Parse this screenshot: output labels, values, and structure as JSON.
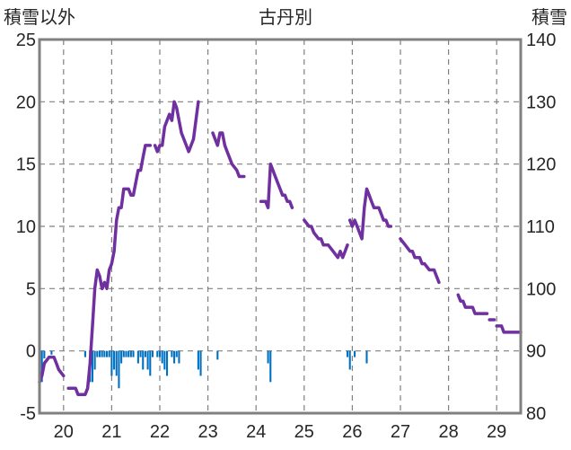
{
  "chart_data": {
    "type": "line",
    "title": "古丹別",
    "left_axis_label": "積雪以外",
    "right_axis_label": "積雪",
    "left_ylim": [
      -5,
      25
    ],
    "left_ticks": [
      "25",
      "20",
      "15",
      "10",
      "5",
      "0",
      "-5"
    ],
    "right_ylim": [
      80,
      140
    ],
    "right_ticks": [
      "140",
      "130",
      "120",
      "110",
      "100",
      "90",
      "80"
    ],
    "x_ticks": [
      "20",
      "21",
      "22",
      "23",
      "24",
      "25",
      "26",
      "27",
      "28",
      "29"
    ],
    "xlim": [
      19.5,
      29.5
    ],
    "grid": true,
    "snow_depth_line": {
      "color": "#7030a0",
      "axis": "right",
      "segments": [
        [
          [
            19.5,
            85
          ],
          [
            19.55,
            86
          ],
          [
            19.6,
            88
          ],
          [
            19.7,
            89
          ],
          [
            19.8,
            89
          ],
          [
            19.85,
            88
          ],
          [
            19.9,
            87
          ],
          [
            20.0,
            86
          ]
        ],
        [
          [
            20.1,
            84
          ],
          [
            20.25,
            84
          ],
          [
            20.3,
            83
          ],
          [
            20.45,
            83
          ],
          [
            20.5,
            84
          ],
          [
            20.55,
            88
          ],
          [
            20.6,
            94
          ],
          [
            20.65,
            100
          ],
          [
            20.7,
            103
          ],
          [
            20.75,
            102
          ],
          [
            20.8,
            100
          ],
          [
            20.85,
            101
          ],
          [
            20.9,
            100
          ],
          [
            20.95,
            103
          ],
          [
            21.0,
            104
          ],
          [
            21.05,
            106
          ],
          [
            21.1,
            111
          ],
          [
            21.15,
            113
          ],
          [
            21.2,
            113
          ],
          [
            21.25,
            116
          ],
          [
            21.35,
            116
          ],
          [
            21.4,
            115
          ],
          [
            21.45,
            115
          ],
          [
            21.55,
            119
          ],
          [
            21.6,
            119
          ],
          [
            21.65,
            121
          ],
          [
            21.7,
            123
          ],
          [
            21.8,
            123
          ]
        ],
        [
          [
            21.9,
            123
          ],
          [
            21.95,
            122
          ],
          [
            22.0,
            123
          ],
          [
            22.05,
            123
          ],
          [
            22.1,
            126
          ],
          [
            22.2,
            128
          ],
          [
            22.25,
            127
          ],
          [
            22.3,
            130
          ],
          [
            22.35,
            129
          ],
          [
            22.4,
            127
          ],
          [
            22.45,
            125
          ],
          [
            22.5,
            124
          ],
          [
            22.55,
            123
          ],
          [
            22.6,
            122
          ],
          [
            22.7,
            124
          ],
          [
            22.75,
            127
          ],
          [
            22.8,
            130
          ]
        ],
        [
          [
            23.1,
            125
          ],
          [
            23.15,
            124
          ],
          [
            23.2,
            123
          ],
          [
            23.25,
            125
          ],
          [
            23.3,
            125
          ],
          [
            23.35,
            123
          ],
          [
            23.4,
            122
          ],
          [
            23.45,
            121
          ],
          [
            23.5,
            120
          ],
          [
            23.6,
            119
          ],
          [
            23.65,
            118
          ],
          [
            23.75,
            118
          ]
        ],
        [
          [
            24.1,
            114
          ],
          [
            24.2,
            114
          ],
          [
            24.25,
            113
          ],
          [
            24.3,
            120
          ],
          [
            24.35,
            119
          ],
          [
            24.4,
            118
          ],
          [
            24.45,
            117
          ],
          [
            24.5,
            116
          ],
          [
            24.55,
            115
          ],
          [
            24.6,
            115
          ],
          [
            24.65,
            114
          ],
          [
            24.7,
            114
          ],
          [
            24.75,
            113
          ]
        ],
        [
          [
            25.0,
            111
          ],
          [
            25.1,
            110
          ],
          [
            25.15,
            110
          ],
          [
            25.2,
            109
          ],
          [
            25.3,
            108
          ],
          [
            25.35,
            108
          ],
          [
            25.4,
            107
          ],
          [
            25.5,
            107
          ],
          [
            25.6,
            106
          ],
          [
            25.7,
            105
          ],
          [
            25.75,
            106
          ],
          [
            25.8,
            105
          ],
          [
            25.85,
            106
          ],
          [
            25.9,
            107
          ]
        ],
        [
          [
            25.95,
            111
          ],
          [
            26.0,
            110
          ],
          [
            26.05,
            111
          ],
          [
            26.1,
            110
          ],
          [
            26.15,
            109
          ],
          [
            26.2,
            108
          ],
          [
            26.25,
            113
          ],
          [
            26.3,
            116
          ],
          [
            26.35,
            115
          ],
          [
            26.4,
            114
          ],
          [
            26.45,
            113
          ],
          [
            26.5,
            113
          ],
          [
            26.55,
            113
          ],
          [
            26.6,
            112
          ],
          [
            26.65,
            111
          ],
          [
            26.7,
            111
          ],
          [
            26.75,
            110
          ],
          [
            26.8,
            110
          ]
        ],
        [
          [
            27.0,
            108
          ],
          [
            27.1,
            107
          ],
          [
            27.2,
            106
          ],
          [
            27.25,
            106
          ],
          [
            27.3,
            105
          ],
          [
            27.4,
            105
          ],
          [
            27.45,
            104
          ],
          [
            27.5,
            104
          ],
          [
            27.6,
            103
          ],
          [
            27.7,
            103
          ],
          [
            27.75,
            102
          ],
          [
            27.8,
            101
          ]
        ],
        [
          [
            28.2,
            99
          ],
          [
            28.25,
            98
          ],
          [
            28.3,
            98
          ],
          [
            28.35,
            97
          ],
          [
            28.4,
            97
          ],
          [
            28.5,
            97
          ],
          [
            28.55,
            96
          ],
          [
            28.6,
            96
          ],
          [
            28.7,
            96
          ],
          [
            28.8,
            96
          ]
        ],
        [
          [
            28.85,
            95
          ],
          [
            28.95,
            95
          ]
        ],
        [
          [
            29.0,
            94
          ],
          [
            29.1,
            94
          ],
          [
            29.15,
            93
          ],
          [
            29.3,
            93
          ],
          [
            29.5,
            93
          ]
        ]
      ]
    },
    "snowfall_bars": {
      "color": "#0070c0",
      "axis": "left",
      "x": [
        19.55,
        19.6,
        19.75,
        20.45,
        20.55,
        20.6,
        20.65,
        20.7,
        20.75,
        20.8,
        20.85,
        20.9,
        20.95,
        21.0,
        21.05,
        21.1,
        21.15,
        21.2,
        21.25,
        21.3,
        21.35,
        21.4,
        21.45,
        21.55,
        21.6,
        21.65,
        21.7,
        21.75,
        21.8,
        21.85,
        21.95,
        22.0,
        22.05,
        22.1,
        22.15,
        22.25,
        22.3,
        22.35,
        22.4,
        22.8,
        22.85,
        23.2,
        24.25,
        24.3,
        25.9,
        25.95,
        26.05,
        26.3
      ],
      "values": [
        -2.5,
        -0.6,
        -0.3,
        -0.5,
        -2.5,
        -2.5,
        -1.5,
        -0.5,
        -0.5,
        -0.5,
        -0.5,
        -0.5,
        -0.5,
        -2,
        -1.5,
        -2,
        -3,
        -1,
        -0.5,
        -0.5,
        -0.5,
        -0.5,
        -0.5,
        -1,
        -0.5,
        -1.5,
        -0.5,
        -1.5,
        -2,
        -0.5,
        -0.5,
        -0.5,
        -1,
        -1.5,
        -2,
        -0.5,
        -1,
        -0.5,
        -1,
        -1.5,
        -2,
        -0.7,
        -1,
        -2.5,
        -0.5,
        -1.5,
        -0.5,
        -1
      ]
    }
  }
}
